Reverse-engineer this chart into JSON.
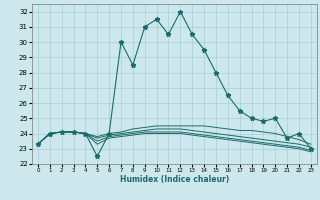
{
  "title": "",
  "xlabel": "Humidex (Indice chaleur)",
  "ylabel": "",
  "xlim": [
    -0.5,
    23.5
  ],
  "ylim": [
    22,
    32.5
  ],
  "yticks": [
    22,
    23,
    24,
    25,
    26,
    27,
    28,
    29,
    30,
    31,
    32
  ],
  "xticks": [
    0,
    1,
    2,
    3,
    4,
    5,
    6,
    7,
    8,
    9,
    10,
    11,
    12,
    13,
    14,
    15,
    16,
    17,
    18,
    19,
    20,
    21,
    22,
    23
  ],
  "bg_color": "#cde8ec",
  "grid_color": "#aacdd4",
  "line_color": "#1a6b6b",
  "lines": [
    {
      "x": [
        0,
        1,
        2,
        3,
        4,
        5,
        6,
        7,
        8,
        9,
        10,
        11,
        12,
        13,
        14,
        15,
        16,
        17,
        18,
        19,
        20,
        21,
        22,
        23
      ],
      "y": [
        23.3,
        24.0,
        24.1,
        24.1,
        24.0,
        22.5,
        24.0,
        30.0,
        28.5,
        31.0,
        31.5,
        30.5,
        32.0,
        30.5,
        29.5,
        28.0,
        26.5,
        25.5,
        25.0,
        24.8,
        25.0,
        23.7,
        24.0,
        23.0
      ],
      "marker": true
    },
    {
      "x": [
        0,
        1,
        2,
        3,
        4,
        5,
        6,
        7,
        8,
        9,
        10,
        11,
        12,
        13,
        14,
        15,
        16,
        17,
        18,
        19,
        20,
        21,
        22,
        23
      ],
      "y": [
        23.3,
        24.0,
        24.1,
        24.1,
        24.0,
        23.8,
        24.0,
        24.1,
        24.3,
        24.4,
        24.5,
        24.5,
        24.5,
        24.5,
        24.5,
        24.4,
        24.3,
        24.2,
        24.2,
        24.1,
        24.0,
        23.8,
        23.6,
        23.3
      ],
      "marker": false
    },
    {
      "x": [
        0,
        1,
        2,
        3,
        4,
        5,
        6,
        7,
        8,
        9,
        10,
        11,
        12,
        13,
        14,
        15,
        16,
        17,
        18,
        19,
        20,
        21,
        22,
        23
      ],
      "y": [
        23.3,
        24.0,
        24.1,
        24.1,
        24.0,
        23.7,
        23.9,
        24.0,
        24.1,
        24.2,
        24.3,
        24.3,
        24.3,
        24.2,
        24.1,
        24.0,
        23.9,
        23.8,
        23.7,
        23.6,
        23.5,
        23.4,
        23.3,
        23.1
      ],
      "marker": false
    },
    {
      "x": [
        0,
        1,
        2,
        3,
        4,
        5,
        6,
        7,
        8,
        9,
        10,
        11,
        12,
        13,
        14,
        15,
        16,
        17,
        18,
        19,
        20,
        21,
        22,
        23
      ],
      "y": [
        23.3,
        24.0,
        24.1,
        24.1,
        24.0,
        23.5,
        23.8,
        23.9,
        24.0,
        24.1,
        24.1,
        24.1,
        24.1,
        24.0,
        23.9,
        23.8,
        23.7,
        23.6,
        23.5,
        23.4,
        23.3,
        23.2,
        23.1,
        22.9
      ],
      "marker": false
    },
    {
      "x": [
        0,
        1,
        2,
        3,
        4,
        5,
        6,
        7,
        8,
        9,
        10,
        11,
        12,
        13,
        14,
        15,
        16,
        17,
        18,
        19,
        20,
        21,
        22,
        23
      ],
      "y": [
        23.3,
        24.0,
        24.1,
        24.1,
        24.0,
        23.3,
        23.7,
        23.8,
        23.9,
        24.0,
        24.0,
        24.0,
        24.0,
        23.9,
        23.8,
        23.7,
        23.6,
        23.5,
        23.4,
        23.3,
        23.2,
        23.1,
        23.0,
        22.8
      ],
      "marker": false
    }
  ]
}
